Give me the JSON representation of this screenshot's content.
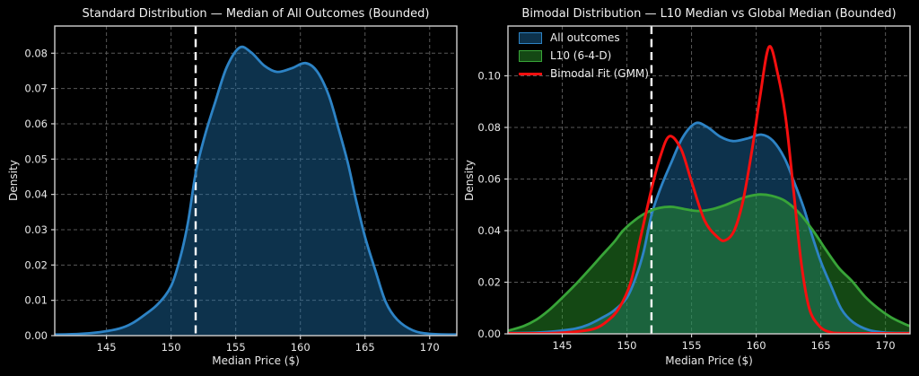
{
  "figure": {
    "background": "#000000",
    "text_color": "#e8e8e8",
    "grid_color": "#585858",
    "spine_color": "#d0d0d0"
  },
  "chart_data": [
    {
      "type": "area",
      "title": "Standard Distribution — Median of All Outcomes (Bounded)",
      "xlabel": "Median Price ($)",
      "ylabel": "Density",
      "xlim": [
        141,
        172.1
      ],
      "ylim": [
        0,
        0.0877
      ],
      "xticks": [
        145,
        150,
        155,
        160,
        165,
        170
      ],
      "yticks": [
        0.0,
        0.01,
        0.02,
        0.03,
        0.04,
        0.05,
        0.06,
        0.07,
        0.08
      ],
      "ytick_decimals": 2,
      "grid": true,
      "legend_position": null,
      "vline": {
        "x": 151.9,
        "color": "#ffffff",
        "style": "dashed",
        "width": 2.4
      },
      "series": [
        {
          "name": "All outcomes",
          "color": "#2d83c5",
          "fill": "rgba(31,119,180,0.42)",
          "width": 2.8,
          "x": [
            141,
            143,
            144.5,
            146,
            147,
            148,
            149,
            150,
            150.7,
            151.3,
            151.9,
            152.6,
            153.4,
            154.3,
            155.3,
            156.2,
            157.2,
            158.2,
            159.3,
            160.4,
            161.3,
            162.2,
            163.0,
            163.7,
            164.3,
            165.0,
            165.8,
            166.6,
            167.5,
            168.7,
            170,
            172.1
          ],
          "y": [
            0.0003,
            0.0005,
            0.001,
            0.002,
            0.0035,
            0.006,
            0.009,
            0.014,
            0.022,
            0.032,
            0.046,
            0.0565,
            0.066,
            0.076,
            0.0816,
            0.0802,
            0.0765,
            0.0747,
            0.0757,
            0.0772,
            0.0748,
            0.068,
            0.058,
            0.0485,
            0.0385,
            0.028,
            0.0185,
            0.0095,
            0.0045,
            0.0015,
            0.0005,
            0.0003
          ]
        }
      ]
    },
    {
      "type": "area",
      "title": "Bimodal Distribution — L10 Median vs Global Median (Bounded)",
      "xlabel": "Median Price ($)",
      "ylabel": "Density",
      "xlim": [
        140.8,
        171.9
      ],
      "ylim": [
        0,
        0.1193
      ],
      "xticks": [
        145,
        150,
        155,
        160,
        165,
        170
      ],
      "yticks": [
        0.0,
        0.02,
        0.04,
        0.06,
        0.08,
        0.1
      ],
      "ytick_decimals": 2,
      "grid": true,
      "legend_position": "upper left",
      "vline": {
        "x": 151.9,
        "color": "#ffffff",
        "style": "dashed",
        "width": 2.4
      },
      "series": [
        {
          "name": "All outcomes",
          "color": "#2d83c5",
          "fill": "rgba(31,119,180,0.42)",
          "width": 2.8,
          "x": [
            140.8,
            143,
            144.5,
            146,
            147,
            148,
            149,
            150,
            150.7,
            151.3,
            151.9,
            152.6,
            153.4,
            154.3,
            155.3,
            156.2,
            157.2,
            158.2,
            159.3,
            160.4,
            161.3,
            162.2,
            163.0,
            163.7,
            164.3,
            165.0,
            165.8,
            166.6,
            167.5,
            168.7,
            170,
            171.9
          ],
          "y": [
            0.0003,
            0.0005,
            0.001,
            0.002,
            0.0035,
            0.006,
            0.009,
            0.014,
            0.022,
            0.032,
            0.046,
            0.0565,
            0.066,
            0.076,
            0.0816,
            0.0802,
            0.0765,
            0.0747,
            0.0757,
            0.0772,
            0.0748,
            0.068,
            0.058,
            0.0485,
            0.0385,
            0.028,
            0.0185,
            0.0095,
            0.0045,
            0.0015,
            0.0005,
            0.0003
          ]
        },
        {
          "name": "L10 (6-4-D)",
          "color": "#38a438",
          "fill": "rgba(44,160,44,0.45)",
          "width": 2.8,
          "x": [
            140.8,
            142,
            143,
            144,
            145,
            146,
            147,
            148,
            149,
            149.7,
            150.6,
            151.6,
            152.5,
            153.5,
            154.5,
            155.5,
            156.5,
            157.5,
            158.5,
            159.4,
            160.3,
            161.2,
            162.2,
            163.3,
            164.4,
            165.4,
            166.4,
            167.4,
            168.4,
            169.4,
            170.4,
            171.4,
            171.9
          ],
          "y": [
            0.0012,
            0.003,
            0.0055,
            0.0093,
            0.014,
            0.019,
            0.0244,
            0.03,
            0.0355,
            0.04,
            0.044,
            0.0472,
            0.0488,
            0.0492,
            0.0483,
            0.0476,
            0.0482,
            0.0497,
            0.0518,
            0.0533,
            0.054,
            0.0535,
            0.0516,
            0.047,
            0.04,
            0.0325,
            0.0255,
            0.0205,
            0.0145,
            0.01,
            0.0065,
            0.004,
            0.003
          ]
        },
        {
          "name": "Bimodal Fit (GMM)",
          "color": "#f50f0f",
          "fill": null,
          "width": 3,
          "x": [
            140.8,
            144,
            146,
            147.5,
            148.5,
            149.4,
            150.3,
            151.0,
            151.9,
            152.6,
            153.3,
            154.2,
            155.0,
            156.0,
            157.0,
            157.6,
            158.3,
            159.0,
            159.7,
            160.3,
            161.0,
            161.7,
            162.3,
            162.9,
            163.5,
            164.1,
            164.8,
            165.6,
            167,
            171.9
          ],
          "y": [
            0.0002,
            0.0002,
            0.0008,
            0.002,
            0.005,
            0.01,
            0.02,
            0.036,
            0.056,
            0.069,
            0.0766,
            0.0715,
            0.059,
            0.044,
            0.0375,
            0.0362,
            0.04,
            0.052,
            0.072,
            0.092,
            0.1113,
            0.1,
            0.083,
            0.055,
            0.027,
            0.01,
            0.0035,
            0.0008,
            0.0002,
            0.0002
          ]
        }
      ]
    }
  ]
}
